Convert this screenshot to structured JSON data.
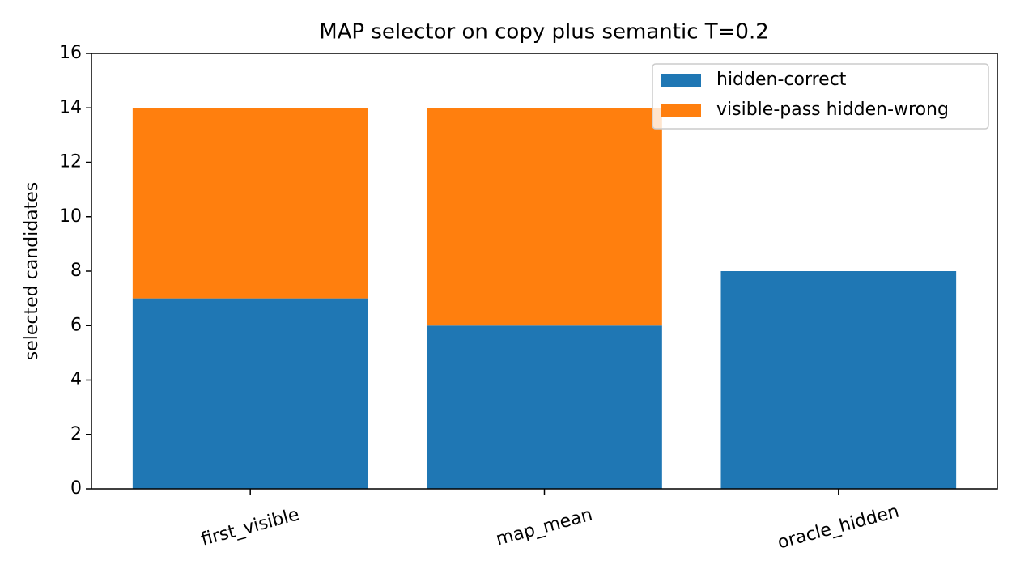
{
  "chart_data": {
    "type": "stacked_bar",
    "title": "MAP selector on copy plus semantic T=0.2",
    "ylabel": "selected candidates",
    "categories": [
      "first_visible",
      "map_mean",
      "oracle_hidden"
    ],
    "series": [
      {
        "name": "hidden-correct",
        "color": "#1f77b4",
        "values": [
          7,
          6,
          8
        ]
      },
      {
        "name": "visible-pass hidden-wrong",
        "color": "#ff7f0e",
        "values": [
          7,
          8,
          0
        ]
      }
    ],
    "ylim": [
      0,
      16
    ],
    "yticks": [
      0,
      2,
      4,
      6,
      8,
      10,
      12,
      14,
      16
    ],
    "legend": "upper right",
    "grid": false
  }
}
